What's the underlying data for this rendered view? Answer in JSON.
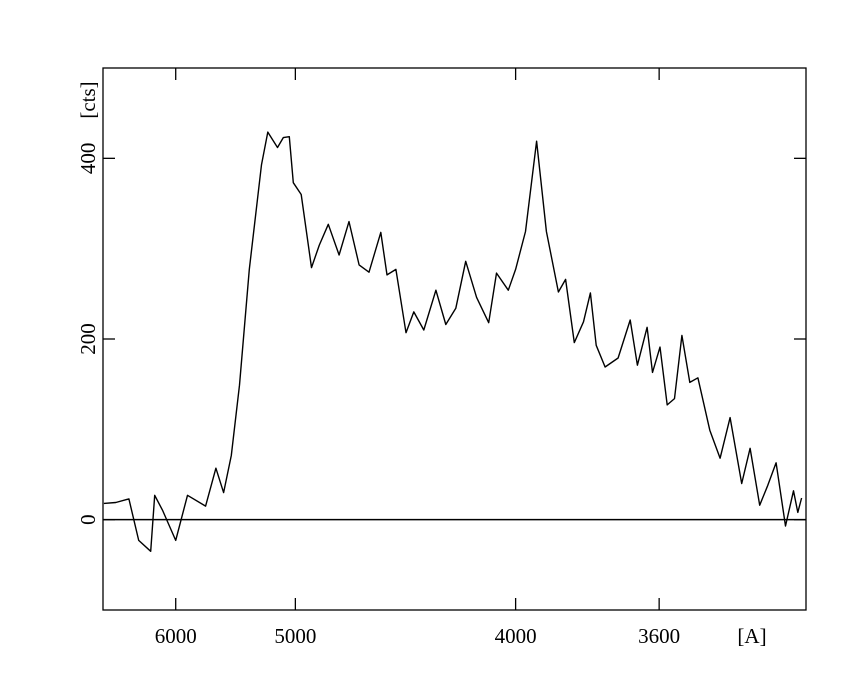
{
  "chart_data": {
    "type": "line",
    "xlabel": "[A]",
    "ylabel": "[cts]",
    "xscale": "inverse-square",
    "xlim": [
      7010,
      3294
    ],
    "xticks": [
      6000,
      5000,
      4000,
      3600
    ],
    "ylim": [
      -100,
      500
    ],
    "yticks": [
      0,
      200,
      400
    ],
    "zero_line": true,
    "x": [
      6995,
      6795,
      6595,
      6455,
      6297,
      6246,
      6149,
      6000,
      5874,
      5695,
      5600,
      5533,
      5467,
      5400,
      5323,
      5231,
      5186,
      5118,
      5079,
      5039,
      5013,
      4963,
      4900,
      4854,
      4802,
      4742,
      4689,
      4637,
      4587,
      4530,
      4501,
      4460,
      4415,
      4381,
      4339,
      4289,
      4250,
      4211,
      4174,
      4134,
      4091,
      4064,
      4024,
      4000,
      3968,
      3933,
      3903,
      3867,
      3846,
      3821,
      3795,
      3776,
      3760,
      3736,
      3702,
      3671,
      3653,
      3629,
      3616,
      3598,
      3581,
      3564,
      3547,
      3529,
      3511,
      3485,
      3463,
      3442,
      3418,
      3401,
      3382,
      3366,
      3350,
      3332,
      3317,
      3309,
      3302
    ],
    "series": [
      {
        "color": "#000000",
        "values": [
          18,
          19,
          23,
          -23,
          -35,
          27,
          10,
          -23,
          27,
          15,
          57,
          30,
          71,
          149,
          277,
          393,
          429,
          412,
          423,
          424,
          373,
          360,
          279,
          304,
          327,
          293,
          330,
          282,
          274,
          318,
          271,
          277,
          207,
          230,
          210,
          254,
          216,
          234,
          286,
          246,
          218,
          273,
          254,
          277,
          319,
          419,
          319,
          252,
          266,
          196,
          219,
          251,
          193,
          169,
          179,
          221,
          171,
          213,
          163,
          191,
          127,
          134,
          204,
          152,
          157,
          99,
          68,
          113,
          40,
          79,
          16,
          38,
          63,
          -7,
          32,
          8,
          24
        ]
      }
    ]
  }
}
